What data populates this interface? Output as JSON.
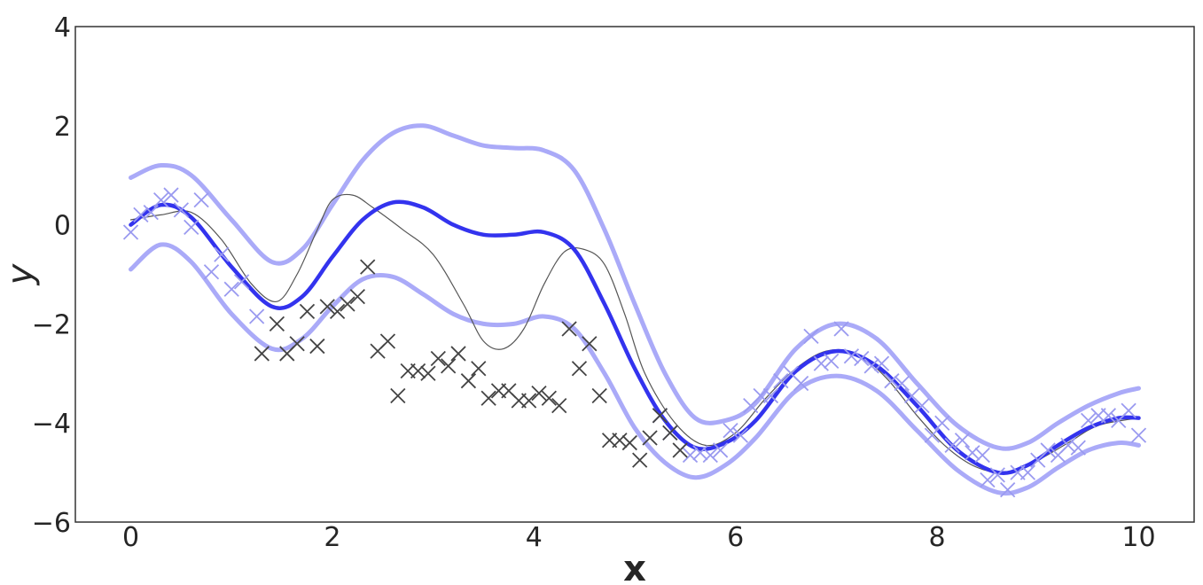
{
  "chart_data": {
    "type": "scatter",
    "title": "",
    "xlabel": "x",
    "ylabel": "y",
    "xlim": [
      -0.55,
      10.55
    ],
    "ylim": [
      -6,
      4
    ],
    "x_ticks": [
      0,
      2,
      4,
      6,
      8,
      10
    ],
    "y_ticks": [
      -6,
      -4,
      -2,
      0,
      2,
      4
    ],
    "x_tick_labels": [
      "0",
      "2",
      "4",
      "6",
      "8",
      "10"
    ],
    "y_tick_labels": [
      "−6",
      "−4",
      "−2",
      "0",
      "2",
      "4"
    ],
    "grid": false,
    "colors": {
      "mean": "#3333ee",
      "band": "#aaaaf8",
      "true_function": "#555555",
      "train_points": "#9a9af0",
      "test_points": "#444444"
    },
    "series": [
      {
        "kind": "line",
        "role": "upper-band",
        "x": [
          0,
          0.3,
          0.6,
          1.0,
          1.4,
          1.7,
          2.0,
          2.3,
          2.6,
          2.9,
          3.2,
          3.5,
          3.8,
          4.1,
          4.4,
          4.7,
          5.0,
          5.3,
          5.6,
          5.9,
          6.2,
          6.6,
          7.0,
          7.4,
          7.8,
          8.2,
          8.6,
          8.9,
          9.2,
          9.5,
          9.8,
          10.0
        ],
        "y": [
          0.95,
          1.2,
          1.0,
          0.1,
          -0.75,
          -0.5,
          0.4,
          1.3,
          1.85,
          2.0,
          1.8,
          1.6,
          1.55,
          1.5,
          1.1,
          -0.1,
          -1.6,
          -3.0,
          -3.9,
          -3.95,
          -3.6,
          -2.5,
          -2.0,
          -2.3,
          -3.2,
          -4.05,
          -4.5,
          -4.4,
          -4.0,
          -3.65,
          -3.4,
          -3.3
        ]
      },
      {
        "kind": "line",
        "role": "lower-band",
        "x": [
          0,
          0.3,
          0.6,
          1.0,
          1.4,
          1.7,
          2.0,
          2.3,
          2.6,
          2.9,
          3.2,
          3.5,
          3.8,
          4.1,
          4.4,
          4.7,
          5.0,
          5.3,
          5.6,
          5.9,
          6.2,
          6.6,
          7.0,
          7.4,
          7.8,
          8.2,
          8.6,
          8.9,
          9.2,
          9.5,
          9.8,
          10.0
        ],
        "y": [
          -0.9,
          -0.4,
          -0.75,
          -1.8,
          -2.5,
          -2.3,
          -1.65,
          -1.1,
          -1.05,
          -1.4,
          -1.8,
          -2.0,
          -2.0,
          -1.85,
          -2.1,
          -3.0,
          -4.1,
          -4.8,
          -5.1,
          -4.85,
          -4.3,
          -3.35,
          -3.05,
          -3.35,
          -4.15,
          -4.95,
          -5.4,
          -5.3,
          -4.9,
          -4.55,
          -4.4,
          -4.45
        ]
      },
      {
        "kind": "line",
        "role": "true-function",
        "x": [
          0,
          0.3,
          0.6,
          0.9,
          1.2,
          1.45,
          1.65,
          1.85,
          2.0,
          2.2,
          2.4,
          2.7,
          3.0,
          3.3,
          3.5,
          3.7,
          3.9,
          4.1,
          4.3,
          4.5,
          4.7,
          4.9,
          5.1,
          5.4,
          5.7,
          6.0,
          6.3,
          6.6,
          6.9,
          7.2,
          7.5,
          7.8,
          8.1,
          8.4,
          8.7,
          9.0,
          9.3,
          9.6,
          10.0
        ],
        "y": [
          0.1,
          0.2,
          0.25,
          -0.3,
          -1.2,
          -1.55,
          -1.0,
          -0.1,
          0.5,
          0.6,
          0.35,
          -0.1,
          -0.6,
          -1.6,
          -2.35,
          -2.5,
          -2.1,
          -1.2,
          -0.55,
          -0.5,
          -0.8,
          -1.8,
          -3.0,
          -4.0,
          -4.45,
          -4.2,
          -3.5,
          -2.9,
          -2.55,
          -2.6,
          -3.1,
          -3.85,
          -4.5,
          -4.9,
          -5.0,
          -4.75,
          -4.4,
          -4.05,
          -3.9
        ]
      },
      {
        "kind": "line",
        "role": "predictive-mean",
        "x": [
          0,
          0.3,
          0.6,
          1.0,
          1.4,
          1.7,
          2.0,
          2.3,
          2.6,
          2.9,
          3.2,
          3.5,
          3.8,
          4.1,
          4.4,
          4.7,
          5.0,
          5.3,
          5.6,
          5.9,
          6.2,
          6.6,
          7.0,
          7.4,
          7.8,
          8.2,
          8.6,
          8.9,
          9.2,
          9.5,
          9.8,
          10.0
        ],
        "y": [
          0.0,
          0.4,
          0.15,
          -0.85,
          -1.65,
          -1.45,
          -0.65,
          0.1,
          0.45,
          0.35,
          0.0,
          -0.2,
          -0.2,
          -0.15,
          -0.5,
          -1.6,
          -2.9,
          -3.95,
          -4.5,
          -4.4,
          -3.95,
          -2.95,
          -2.55,
          -2.85,
          -3.65,
          -4.55,
          -5.0,
          -4.85,
          -4.45,
          -4.1,
          -3.9,
          -3.9
        ]
      },
      {
        "kind": "scatter",
        "role": "training-points",
        "points": [
          [
            0.0,
            -0.15
          ],
          [
            0.1,
            0.2
          ],
          [
            0.2,
            0.25
          ],
          [
            0.3,
            0.5
          ],
          [
            0.4,
            0.6
          ],
          [
            0.5,
            0.3
          ],
          [
            0.6,
            -0.05
          ],
          [
            0.7,
            0.5
          ],
          [
            0.8,
            -0.95
          ],
          [
            0.9,
            -0.6
          ],
          [
            1.0,
            -1.3
          ],
          [
            1.1,
            -1.15
          ],
          [
            1.25,
            -1.85
          ],
          [
            5.25,
            -3.85
          ],
          [
            5.35,
            -4.2
          ],
          [
            5.55,
            -4.65
          ],
          [
            5.65,
            -4.6
          ],
          [
            5.75,
            -4.65
          ],
          [
            5.85,
            -4.55
          ],
          [
            5.95,
            -4.15
          ],
          [
            6.05,
            -4.25
          ],
          [
            6.15,
            -3.65
          ],
          [
            6.25,
            -3.45
          ],
          [
            6.35,
            -3.45
          ],
          [
            6.45,
            -3.15
          ],
          [
            6.55,
            -3.0
          ],
          [
            6.65,
            -3.2
          ],
          [
            6.75,
            -2.25
          ],
          [
            6.85,
            -2.8
          ],
          [
            6.95,
            -2.75
          ],
          [
            7.05,
            -2.1
          ],
          [
            7.15,
            -2.65
          ],
          [
            7.25,
            -2.7
          ],
          [
            7.35,
            -2.85
          ],
          [
            7.45,
            -2.8
          ],
          [
            7.55,
            -3.15
          ],
          [
            7.65,
            -3.2
          ],
          [
            7.75,
            -3.45
          ],
          [
            7.85,
            -3.65
          ],
          [
            7.95,
            -4.25
          ],
          [
            8.05,
            -4.0
          ],
          [
            8.15,
            -4.45
          ],
          [
            8.25,
            -4.35
          ],
          [
            8.35,
            -4.6
          ],
          [
            8.45,
            -4.65
          ],
          [
            8.5,
            -5.15
          ],
          [
            8.6,
            -5.05
          ],
          [
            8.7,
            -5.35
          ],
          [
            8.8,
            -5.0
          ],
          [
            8.9,
            -5.0
          ],
          [
            9.0,
            -4.75
          ],
          [
            9.1,
            -4.55
          ],
          [
            9.2,
            -4.65
          ],
          [
            9.3,
            -4.45
          ],
          [
            9.4,
            -4.5
          ],
          [
            9.5,
            -3.95
          ],
          [
            9.6,
            -3.85
          ],
          [
            9.7,
            -3.85
          ],
          [
            9.8,
            -3.95
          ],
          [
            9.9,
            -3.75
          ],
          [
            10.0,
            -4.25
          ]
        ]
      },
      {
        "kind": "scatter",
        "role": "test-points",
        "points": [
          [
            1.3,
            -2.6
          ],
          [
            1.45,
            -2.0
          ],
          [
            1.55,
            -2.6
          ],
          [
            1.65,
            -2.4
          ],
          [
            1.75,
            -1.75
          ],
          [
            1.85,
            -2.45
          ],
          [
            1.95,
            -1.65
          ],
          [
            2.05,
            -1.75
          ],
          [
            2.15,
            -1.6
          ],
          [
            2.25,
            -1.45
          ],
          [
            2.35,
            -0.85
          ],
          [
            2.45,
            -2.55
          ],
          [
            2.55,
            -2.35
          ],
          [
            2.65,
            -3.45
          ],
          [
            2.75,
            -2.95
          ],
          [
            2.85,
            -2.95
          ],
          [
            2.95,
            -3.0
          ],
          [
            3.05,
            -2.7
          ],
          [
            3.15,
            -2.85
          ],
          [
            3.25,
            -2.6
          ],
          [
            3.35,
            -3.15
          ],
          [
            3.45,
            -2.9
          ],
          [
            3.55,
            -3.5
          ],
          [
            3.65,
            -3.35
          ],
          [
            3.75,
            -3.35
          ],
          [
            3.85,
            -3.55
          ],
          [
            3.95,
            -3.55
          ],
          [
            4.05,
            -3.4
          ],
          [
            4.15,
            -3.5
          ],
          [
            4.25,
            -3.65
          ],
          [
            4.35,
            -2.1
          ],
          [
            4.45,
            -2.9
          ],
          [
            4.55,
            -2.4
          ],
          [
            4.65,
            -3.45
          ],
          [
            4.75,
            -4.35
          ],
          [
            4.85,
            -4.35
          ],
          [
            4.95,
            -4.4
          ],
          [
            5.05,
            -4.75
          ],
          [
            5.15,
            -4.3
          ],
          [
            5.25,
            -3.85
          ],
          [
            5.35,
            -4.2
          ],
          [
            5.45,
            -4.55
          ]
        ]
      }
    ]
  }
}
